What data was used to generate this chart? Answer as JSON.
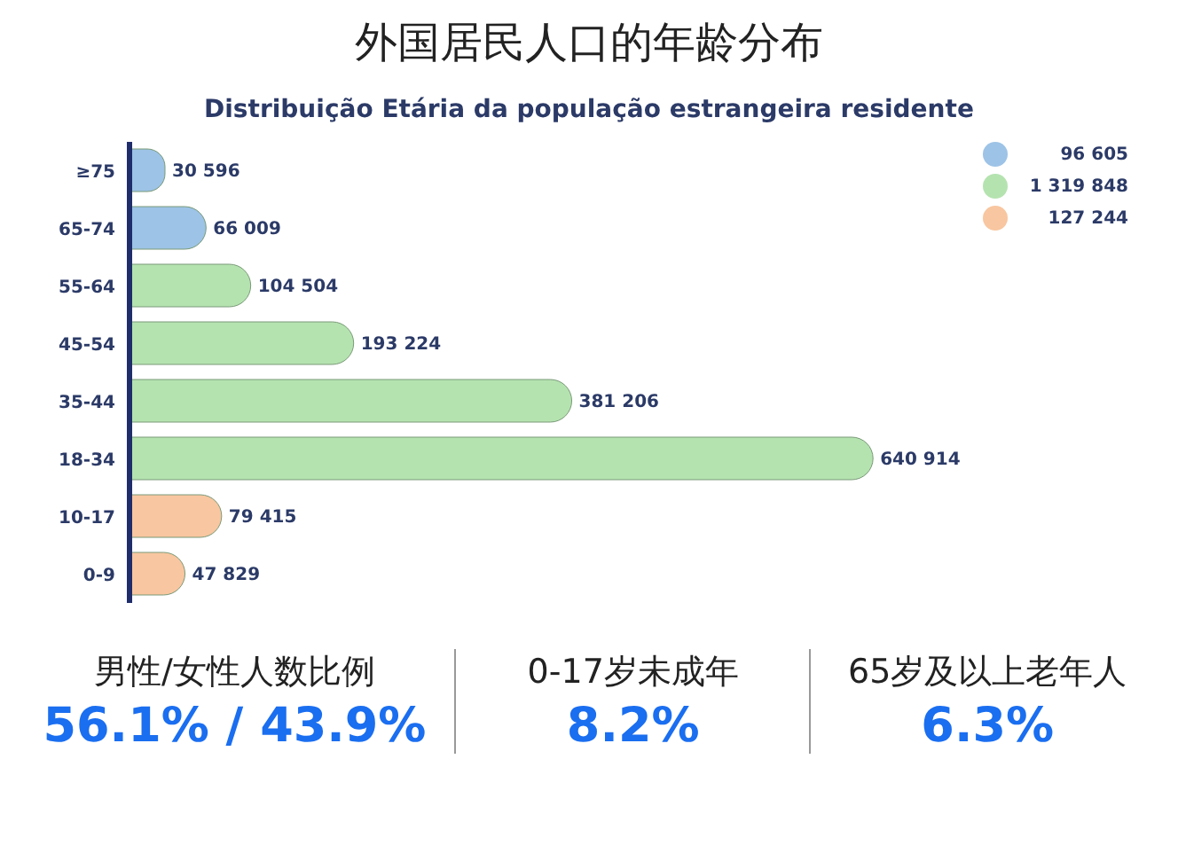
{
  "chart_data": {
    "type": "bar",
    "orientation": "horizontal",
    "stacked": true,
    "title": "外国居民人口的年龄分布",
    "subtitle": "Distribuição Etária da população estrangeira residente",
    "categories": [
      "≥75",
      "65-74",
      "55-64",
      "45-54",
      "35-44",
      "18-34",
      "10-17",
      "0-9"
    ],
    "series": [
      {
        "name": "96 605",
        "color": "#9dc3e6",
        "values": [
          30596,
          66009,
          null,
          null,
          null,
          null,
          null,
          null
        ],
        "value_labels": [
          "30 596",
          "66 009",
          null,
          null,
          null,
          null,
          null,
          null
        ]
      },
      {
        "name": "1 319 848",
        "color": "#b5e3b0",
        "values": [
          null,
          null,
          104504,
          193224,
          381206,
          640914,
          null,
          null
        ],
        "value_labels": [
          null,
          null,
          "104 504",
          "193 224",
          "381 206",
          "640 914",
          null,
          null
        ]
      },
      {
        "name": "127 244",
        "color": "#f8c6a0",
        "values": [
          null,
          null,
          null,
          null,
          null,
          null,
          79415,
          47829
        ],
        "value_labels": [
          null,
          null,
          null,
          null,
          null,
          null,
          "79 415",
          "47 829"
        ]
      }
    ],
    "legend": "top right",
    "grid": false,
    "annotations": [
      "男性/女性人数比例",
      "56.1% / 43.9%",
      "0-17岁未成年",
      "8.2%",
      "65岁及以上老年人",
      "6.3%"
    ]
  }
}
